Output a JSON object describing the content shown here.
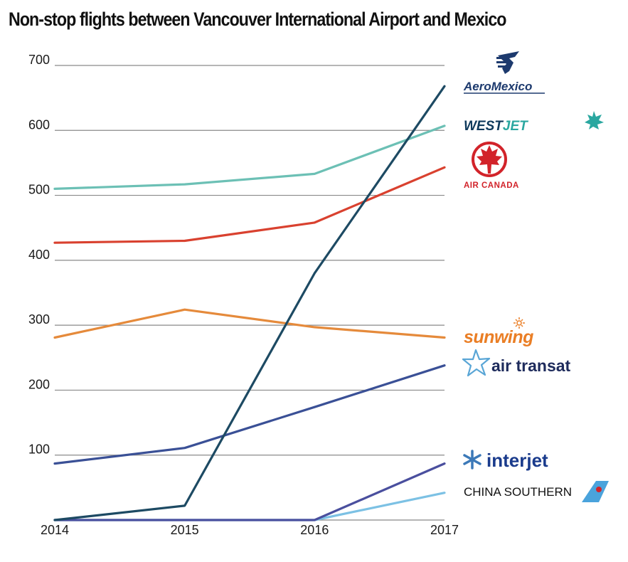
{
  "chart_data": {
    "type": "line",
    "title": "Non-stop flights between Vancouver International Airport and Mexico",
    "xlabel": "",
    "ylabel": "",
    "x": [
      2014,
      2015,
      2016,
      2017
    ],
    "x_tick_labels": [
      "2014",
      "2015",
      "2016",
      "2017"
    ],
    "y_ticks": [
      100,
      200,
      300,
      400,
      500,
      600,
      700
    ],
    "y_tick_labels": [
      "100",
      "200",
      "300",
      "400",
      "500",
      "600",
      "700"
    ],
    "ylim": [
      0,
      700
    ],
    "grid": true,
    "legend": "right (airline logos at line ends)",
    "series": [
      {
        "name": "AeroMexico",
        "color": "#1d4a63",
        "values": [
          0,
          22,
          380,
          668
        ]
      },
      {
        "name": "WestJet",
        "color": "#6cc0b5",
        "values": [
          510,
          517,
          533,
          607
        ]
      },
      {
        "name": "Air Canada",
        "color": "#d9412f",
        "values": [
          427,
          430,
          458,
          543
        ]
      },
      {
        "name": "Sunwing",
        "color": "#e58a3b",
        "values": [
          281,
          324,
          297,
          281
        ]
      },
      {
        "name": "Air Transat",
        "color": "#3a5096",
        "values": [
          87,
          111,
          174,
          238
        ]
      },
      {
        "name": "Interjet",
        "color": "#4a4f9e",
        "values": [
          0,
          0,
          0,
          87
        ]
      },
      {
        "name": "China Southern",
        "color": "#7cc1e4",
        "values": [
          0,
          0,
          0,
          42
        ]
      }
    ]
  },
  "logos": {
    "aeromexico": "AeroMexico",
    "westjet_west": "WEST",
    "westjet_jet": "JET",
    "aircanada": "AIR CANADA",
    "sunwing": "sunwing",
    "airtransat": "air transat",
    "interjet": "interjet",
    "chinasouthern": "CHINA SOUTHERN"
  }
}
